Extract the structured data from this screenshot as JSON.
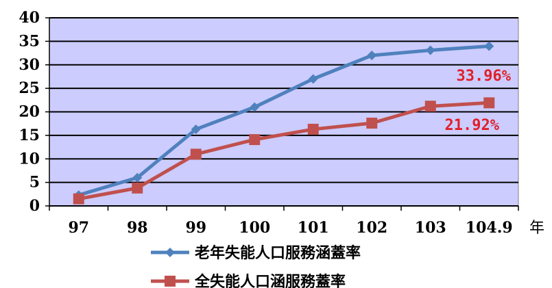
{
  "chart_data": {
    "type": "line",
    "title": "",
    "xlabel": "",
    "ylabel": "",
    "x_unit": "年",
    "categories": [
      "97",
      "98",
      "99",
      "100",
      "101",
      "102",
      "103",
      "104.9"
    ],
    "ylim": [
      0,
      40
    ],
    "y_ticks": [
      "0",
      "5",
      "10",
      "15",
      "20",
      "25",
      "30",
      "35",
      "40"
    ],
    "grid": true,
    "plot_background": "#ccccff",
    "legend_position": "bottom",
    "series": [
      {
        "name": "老年失能人口服務涵蓋率",
        "color": "#4f81bd",
        "marker": "diamond",
        "values": [
          2.3,
          6.0,
          16.3,
          21.0,
          27.0,
          32.0,
          33.1,
          33.96
        ],
        "end_label": "33.96%"
      },
      {
        "name": "全失能人口涵服務蓋率",
        "color": "#c0504d",
        "marker": "square",
        "values": [
          1.5,
          3.8,
          11.0,
          14.1,
          16.3,
          17.6,
          21.2,
          21.92
        ],
        "end_label": "21.92%"
      }
    ]
  }
}
